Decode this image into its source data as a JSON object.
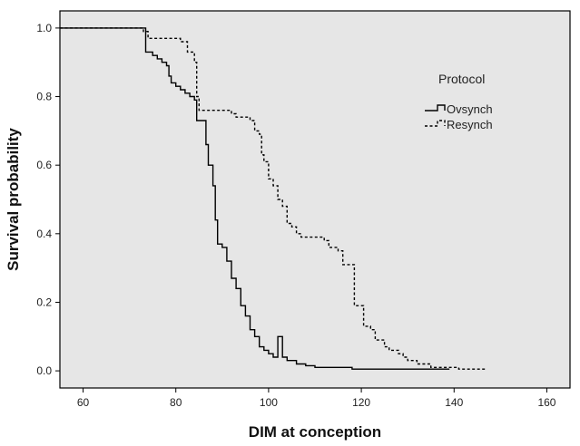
{
  "chart_data": {
    "type": "line",
    "title": "",
    "xlabel": "DIM at conception",
    "ylabel": "Survival probability",
    "xlim": [
      55,
      165
    ],
    "ylim": [
      -0.05,
      1.05
    ],
    "xticks": [
      60,
      80,
      100,
      120,
      140,
      160
    ],
    "yticks": [
      0.0,
      0.2,
      0.4,
      0.6,
      0.8,
      1.0
    ],
    "xtick_labels": [
      "60",
      "80",
      "100",
      "120",
      "140",
      "160"
    ],
    "ytick_labels": [
      "0.0",
      "0.2",
      "0.4",
      "0.6",
      "0.8",
      "1.0"
    ],
    "step": true,
    "grid": false,
    "background_color": "#e6e6e6",
    "legend": {
      "title": "Protocol",
      "placement": "upper-right"
    },
    "series": [
      {
        "name": "Ovsynch",
        "style": "solid",
        "color": "#000000",
        "points": [
          [
            55,
            1.0
          ],
          [
            73,
            1.0
          ],
          [
            73.5,
            0.93
          ],
          [
            75,
            0.92
          ],
          [
            76,
            0.91
          ],
          [
            77,
            0.9
          ],
          [
            78,
            0.89
          ],
          [
            78.5,
            0.86
          ],
          [
            79,
            0.84
          ],
          [
            80,
            0.83
          ],
          [
            81,
            0.82
          ],
          [
            82,
            0.81
          ],
          [
            83,
            0.8
          ],
          [
            84,
            0.79
          ],
          [
            84.5,
            0.73
          ],
          [
            86,
            0.73
          ],
          [
            86.5,
            0.66
          ],
          [
            87,
            0.6
          ],
          [
            88,
            0.54
          ],
          [
            88.5,
            0.44
          ],
          [
            89,
            0.37
          ],
          [
            90,
            0.36
          ],
          [
            91,
            0.32
          ],
          [
            92,
            0.27
          ],
          [
            93,
            0.24
          ],
          [
            94,
            0.19
          ],
          [
            95,
            0.16
          ],
          [
            96,
            0.12
          ],
          [
            97,
            0.1
          ],
          [
            98,
            0.07
          ],
          [
            99,
            0.06
          ],
          [
            100,
            0.05
          ],
          [
            101,
            0.04
          ],
          [
            102,
            0.1
          ],
          [
            103,
            0.04
          ],
          [
            104,
            0.03
          ],
          [
            106,
            0.02
          ],
          [
            108,
            0.015
          ],
          [
            110,
            0.01
          ],
          [
            118,
            0.005
          ],
          [
            139,
            0.005
          ]
        ]
      },
      {
        "name": "Resynch",
        "style": "dashed",
        "color": "#000000",
        "points": [
          [
            55,
            1.0
          ],
          [
            72,
            1.0
          ],
          [
            73,
            0.99
          ],
          [
            74,
            0.97
          ],
          [
            80,
            0.97
          ],
          [
            81,
            0.96
          ],
          [
            82.5,
            0.93
          ],
          [
            84,
            0.9
          ],
          [
            84.5,
            0.8
          ],
          [
            85,
            0.76
          ],
          [
            92,
            0.75
          ],
          [
            93,
            0.74
          ],
          [
            95,
            0.74
          ],
          [
            96,
            0.73
          ],
          [
            97,
            0.7
          ],
          [
            98,
            0.69
          ],
          [
            98.5,
            0.63
          ],
          [
            99,
            0.61
          ],
          [
            100,
            0.56
          ],
          [
            101,
            0.54
          ],
          [
            102,
            0.5
          ],
          [
            103,
            0.48
          ],
          [
            104,
            0.43
          ],
          [
            105,
            0.42
          ],
          [
            106,
            0.4
          ],
          [
            107,
            0.39
          ],
          [
            112,
            0.38
          ],
          [
            113,
            0.36
          ],
          [
            115,
            0.35
          ],
          [
            116,
            0.31
          ],
          [
            118,
            0.31
          ],
          [
            118.5,
            0.19
          ],
          [
            120,
            0.19
          ],
          [
            120.5,
            0.13
          ],
          [
            122,
            0.12
          ],
          [
            123,
            0.09
          ],
          [
            125,
            0.07
          ],
          [
            126,
            0.06
          ],
          [
            128,
            0.05
          ],
          [
            129,
            0.04
          ],
          [
            130,
            0.03
          ],
          [
            132,
            0.02
          ],
          [
            135,
            0.01
          ],
          [
            141,
            0.005
          ],
          [
            147,
            0.005
          ]
        ]
      }
    ]
  }
}
